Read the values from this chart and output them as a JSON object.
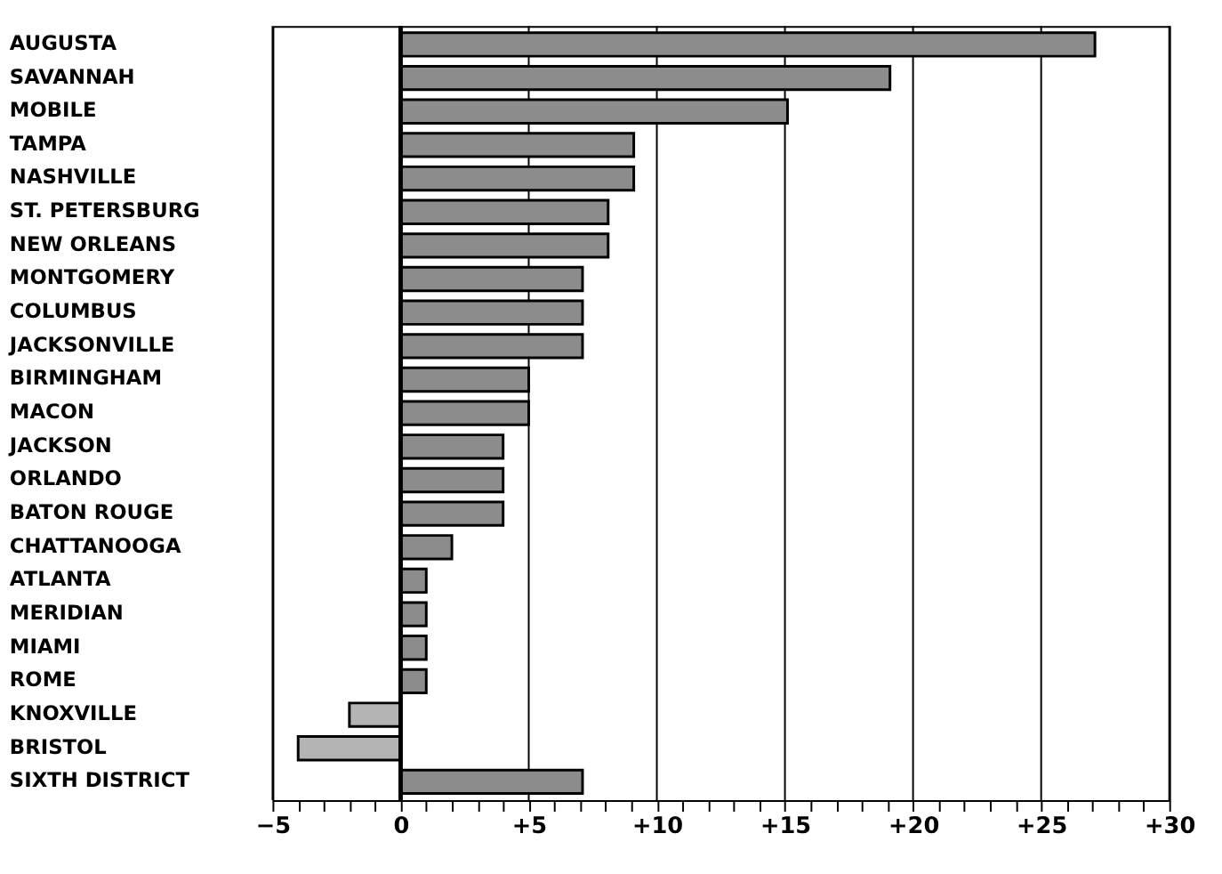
{
  "chart_data": {
    "type": "bar",
    "orientation": "horizontal",
    "categories": [
      "AUGUSTA",
      "SAVANNAH",
      "MOBILE",
      "TAMPA",
      "NASHVILLE",
      "ST. PETERSBURG",
      "NEW ORLEANS",
      "MONTGOMERY",
      "COLUMBUS",
      "JACKSONVILLE",
      "BIRMINGHAM",
      "MACON",
      "JACKSON",
      "ORLANDO",
      "BATON ROUGE",
      "CHATTANOOGA",
      "ATLANTA",
      "MERIDIAN",
      "MIAMI",
      "ROME",
      "KNOXVILLE",
      "BRISTOL",
      "SIXTH DISTRICT"
    ],
    "values": [
      27.1,
      19.1,
      15.1,
      9.1,
      9.1,
      8.1,
      8.1,
      7.1,
      7.1,
      7.1,
      5.0,
      5.0,
      4.0,
      4.0,
      4.0,
      2.0,
      1.0,
      1.0,
      1.0,
      1.0,
      -2.0,
      -4.0,
      7.1
    ],
    "colors": [
      "#8c8c8c",
      "#8c8c8c",
      "#8c8c8c",
      "#8c8c8c",
      "#8c8c8c",
      "#8c8c8c",
      "#8c8c8c",
      "#8c8c8c",
      "#8c8c8c",
      "#8c8c8c",
      "#8c8c8c",
      "#8c8c8c",
      "#8c8c8c",
      "#8c8c8c",
      "#8c8c8c",
      "#8c8c8c",
      "#8c8c8c",
      "#8c8c8c",
      "#8c8c8c",
      "#8c8c8c",
      "#b4b4b4",
      "#b4b4b4",
      "#8c8c8c"
    ],
    "xlim": [
      -5,
      30
    ],
    "xticks": [
      {
        "value": -5,
        "label": "−5"
      },
      {
        "value": -4,
        "label": null
      },
      {
        "value": -3,
        "label": null
      },
      {
        "value": -2,
        "label": null
      },
      {
        "value": -1,
        "label": null
      },
      0,
      {
        "value": 1,
        "label": null
      },
      {
        "value": 2,
        "label": null
      },
      {
        "value": 3,
        "label": null
      },
      {
        "value": 4,
        "label": null
      },
      {
        "value": 5,
        "label": "+5"
      },
      {
        "value": 6,
        "label": null
      },
      {
        "value": 7,
        "label": null
      },
      {
        "value": 8,
        "label": null
      },
      {
        "value": 9,
        "label": null
      },
      {
        "value": 10,
        "label": "+10"
      },
      {
        "value": 11,
        "label": null
      },
      {
        "value": 12,
        "label": null
      },
      {
        "value": 13,
        "label": null
      },
      {
        "value": 14,
        "label": null
      },
      {
        "value": 15,
        "label": "+15"
      },
      {
        "value": 16,
        "label": null
      },
      {
        "value": 17,
        "label": null
      },
      {
        "value": 18,
        "label": null
      },
      {
        "value": 19,
        "label": null
      },
      {
        "value": 20,
        "label": "+20"
      },
      {
        "value": 21,
        "label": null
      },
      {
        "value": 22,
        "label": null
      },
      {
        "value": 23,
        "label": null
      },
      {
        "value": 24,
        "label": null
      },
      {
        "value": 25,
        "label": "+25"
      },
      {
        "value": 26,
        "label": null
      },
      {
        "value": 27,
        "label": null
      },
      {
        "value": 28,
        "label": null
      },
      {
        "value": 29,
        "label": null
      },
      {
        "value": 30,
        "label": "+30"
      }
    ],
    "ref_lines": [
      {
        "axis": "x",
        "value": 0
      }
    ],
    "grid": "x"
  }
}
